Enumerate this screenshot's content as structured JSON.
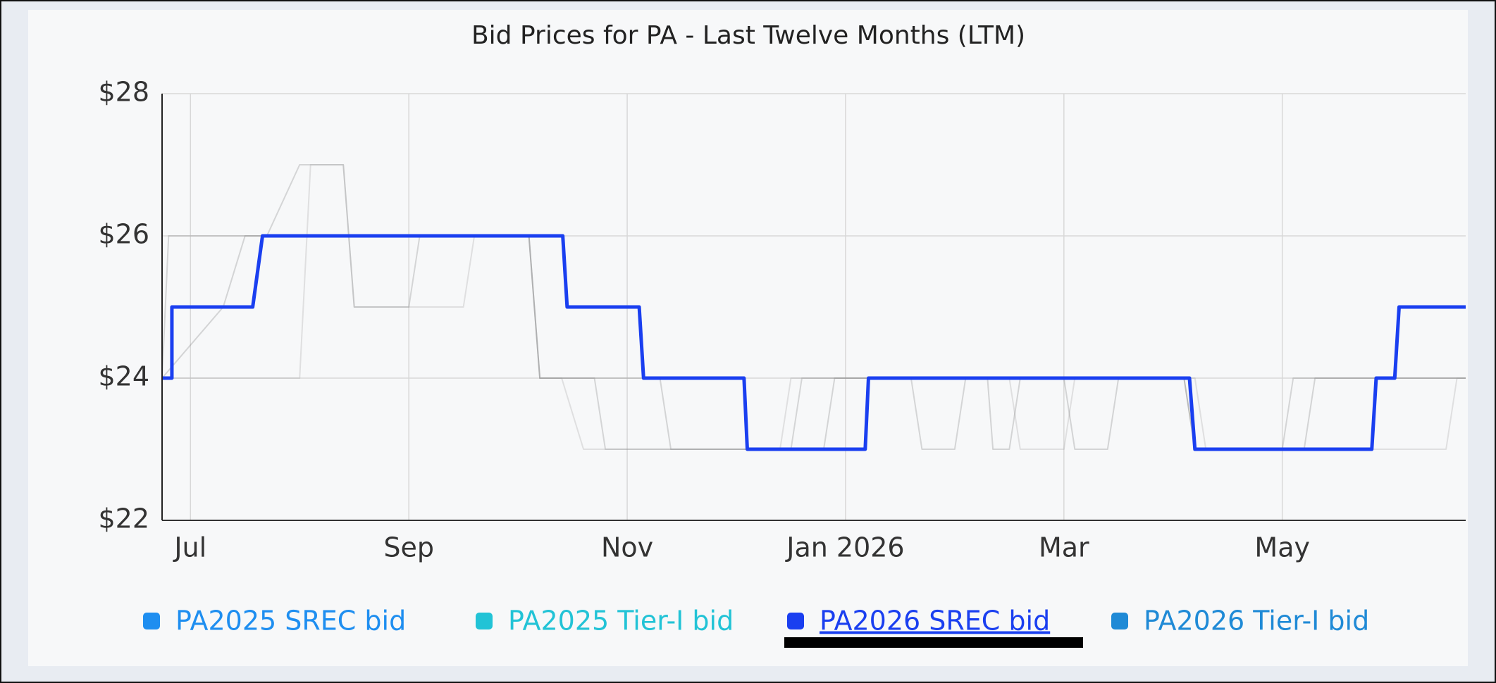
{
  "chart_data": {
    "type": "line",
    "title": "Bid Prices for PA - Last Twelve Months (LTM)",
    "xlim": [
      -0.26,
      11.68
    ],
    "xticks": [
      {
        "value": 0,
        "label": "Jul"
      },
      {
        "value": 2,
        "label": "Sep"
      },
      {
        "value": 4,
        "label": "Nov"
      },
      {
        "value": 6,
        "label": "Jan 2026"
      },
      {
        "value": 8,
        "label": "Mar"
      },
      {
        "value": 10,
        "label": "May"
      }
    ],
    "ylim": [
      22,
      28
    ],
    "yticks": [
      {
        "value": 22,
        "label": "$22"
      },
      {
        "value": 24,
        "label": "$24"
      },
      {
        "value": 26,
        "label": "$26"
      },
      {
        "value": 28,
        "label": "$28"
      }
    ],
    "grid": true,
    "highlighted_series": 2,
    "series": [
      {
        "name": "PA2025 SREC bid",
        "color": "#1e8ef0",
        "x": [
          -0.26,
          -0.2,
          0.7,
          1.0,
          1.4,
          1.5,
          2.0,
          2.1,
          3.1,
          3.2,
          3.7,
          3.8,
          5.5,
          5.6,
          6.6,
          6.7,
          7.0,
          7.1,
          9.1,
          9.2,
          10.0,
          10.1,
          11.68
        ],
        "values": [
          24,
          26,
          26,
          27,
          27,
          25,
          25,
          26,
          26,
          24,
          24,
          23,
          23,
          24,
          24,
          23,
          23,
          24,
          24,
          23,
          23,
          24,
          24
        ]
      },
      {
        "name": "PA2025 Tier-I bid",
        "color": "#22c3d6",
        "x": [
          -0.26,
          1.0,
          1.1,
          1.4,
          1.5,
          2.5,
          2.6,
          3.1,
          3.2,
          3.4,
          3.6,
          5.4,
          5.5,
          7.5,
          7.6,
          8.0,
          8.1,
          9.2,
          9.3,
          11.5,
          11.6,
          11.68
        ],
        "values": [
          24,
          24,
          27,
          27,
          25,
          25,
          26,
          26,
          24,
          24,
          23,
          23,
          24,
          24,
          23,
          23,
          24,
          24,
          23,
          23,
          24,
          24
        ]
      },
      {
        "name": "PA2026 SREC bid",
        "color": "#1a3ff0",
        "x": [
          -0.26,
          -0.17,
          -0.17,
          0.57,
          0.66,
          3.41,
          3.45,
          4.11,
          4.15,
          5.07,
          5.1,
          6.18,
          6.21,
          9.15,
          9.2,
          10.82,
          10.86,
          11.03,
          11.07,
          11.68
        ],
        "values": [
          24,
          24,
          25,
          25,
          26,
          26,
          25,
          25,
          24,
          24,
          23,
          23,
          24,
          24,
          23,
          23,
          24,
          24,
          25,
          25
        ]
      },
      {
        "name": "PA2026 Tier-I bid",
        "color": "#1f8ad6",
        "x": [
          -0.26,
          0.3,
          0.5,
          3.1,
          3.2,
          4.3,
          4.4,
          5.8,
          5.9,
          7.3,
          7.35,
          7.5,
          7.6,
          8.0,
          8.1,
          8.4,
          8.5,
          9.1,
          9.2,
          10.2,
          10.3,
          11.68
        ],
        "values": [
          24,
          25,
          26,
          26,
          24,
          24,
          23,
          23,
          24,
          24,
          23,
          23,
          24,
          24,
          23,
          23,
          24,
          24,
          23,
          23,
          24,
          24
        ]
      }
    ]
  }
}
